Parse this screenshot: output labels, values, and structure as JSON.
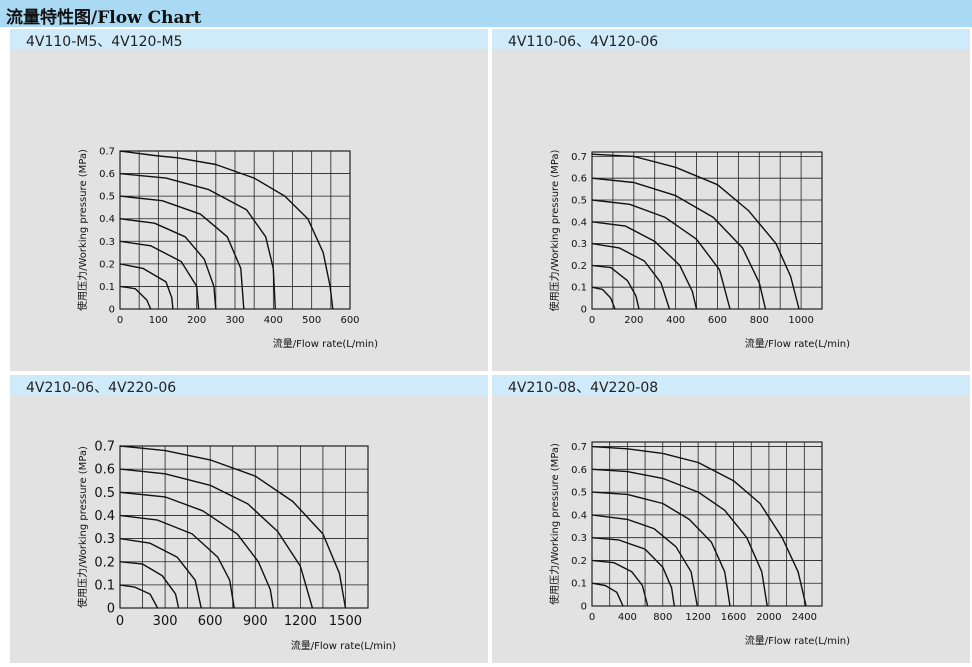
{
  "header": {
    "title": "流量特性图/Flow Chart"
  },
  "colors": {
    "header_bg": "#a9d9f3",
    "panel_head_bg": "#cfeaf8",
    "panel_bg": "#e2e2e2",
    "line": "#111111"
  },
  "chart_data": [
    {
      "type": "line",
      "title": "4V110-M5、4V120-M5",
      "xlabel": "流量/Flow rate(L/min)",
      "ylabel": "使用压力/Working pressure (MPa)",
      "xlim": [
        0,
        600
      ],
      "ylim": [
        0,
        0.7
      ],
      "x_ticks": [
        0,
        100,
        200,
        300,
        400,
        500,
        600
      ],
      "y_ticks": [
        0,
        0.1,
        0.2,
        0.3,
        0.4,
        0.5,
        0.6,
        0.7
      ],
      "x_tick_labels": [
        "0",
        "100",
        "200",
        "300",
        "400",
        "500",
        "600"
      ],
      "y_tick_labels": [
        "0",
        "0.1",
        "0.2",
        "0.3",
        "0.4",
        "0.5",
        "0.6",
        "0.7"
      ],
      "x_grid": [
        0,
        50,
        100,
        150,
        200,
        250,
        300,
        350,
        400,
        450,
        500,
        550,
        600
      ],
      "grid": true,
      "series": [
        {
          "values": [
            [
              0,
              0.7
            ],
            [
              90,
              0.68
            ],
            [
              150,
              0.67
            ],
            [
              250,
              0.64
            ],
            [
              350,
              0.58
            ],
            [
              430,
              0.5
            ],
            [
              490,
              0.4
            ],
            [
              530,
              0.25
            ],
            [
              548,
              0.1
            ],
            [
              555,
              0
            ]
          ]
        },
        {
          "values": [
            [
              0,
              0.6
            ],
            [
              120,
              0.58
            ],
            [
              230,
              0.53
            ],
            [
              330,
              0.44
            ],
            [
              380,
              0.32
            ],
            [
              400,
              0.18
            ],
            [
              405,
              0
            ]
          ]
        },
        {
          "values": [
            [
              0,
              0.5
            ],
            [
              110,
              0.48
            ],
            [
              210,
              0.42
            ],
            [
              280,
              0.32
            ],
            [
              315,
              0.18
            ],
            [
              323,
              0
            ]
          ]
        },
        {
          "values": [
            [
              0,
              0.4
            ],
            [
              90,
              0.38
            ],
            [
              170,
              0.32
            ],
            [
              220,
              0.22
            ],
            [
              245,
              0.1
            ],
            [
              250,
              0
            ]
          ]
        },
        {
          "values": [
            [
              0,
              0.3
            ],
            [
              80,
              0.28
            ],
            [
              160,
              0.21
            ],
            [
              200,
              0.1
            ],
            [
              205,
              0
            ]
          ]
        },
        {
          "values": [
            [
              0,
              0.2
            ],
            [
              60,
              0.18
            ],
            [
              120,
              0.12
            ],
            [
              135,
              0.05
            ],
            [
              138,
              0
            ]
          ]
        },
        {
          "values": [
            [
              0,
              0.1
            ],
            [
              40,
              0.09
            ],
            [
              70,
              0.04
            ],
            [
              80,
              0
            ]
          ]
        }
      ]
    },
    {
      "type": "line",
      "title": "4V110-06、4V120-06",
      "xlabel": "流量/Flow rate(L/min)",
      "ylabel": "使用压力/Working pressure (MPa)",
      "xlim": [
        0,
        1100
      ],
      "ylim": [
        0,
        0.72
      ],
      "x_ticks": [
        0,
        200,
        400,
        600,
        800,
        1000
      ],
      "y_ticks": [
        0,
        0.1,
        0.2,
        0.3,
        0.4,
        0.5,
        0.6,
        0.7
      ],
      "x_tick_labels": [
        "0",
        "200",
        "400",
        "600",
        "800",
        "1000"
      ],
      "y_tick_labels": [
        "0",
        "0.1",
        "0.2",
        "0.3",
        "0.4",
        "0.5",
        "0.6",
        "0.7"
      ],
      "x_grid": [
        0,
        100,
        200,
        300,
        400,
        500,
        600,
        700,
        800,
        900,
        1000,
        1100
      ],
      "grid": true,
      "series": [
        {
          "values": [
            [
              0,
              0.71
            ],
            [
              200,
              0.7
            ],
            [
              400,
              0.65
            ],
            [
              600,
              0.57
            ],
            [
              750,
              0.45
            ],
            [
              880,
              0.3
            ],
            [
              950,
              0.15
            ],
            [
              990,
              0
            ]
          ]
        },
        {
          "values": [
            [
              0,
              0.6
            ],
            [
              200,
              0.58
            ],
            [
              400,
              0.52
            ],
            [
              580,
              0.42
            ],
            [
              720,
              0.28
            ],
            [
              800,
              0.12
            ],
            [
              830,
              0
            ]
          ]
        },
        {
          "values": [
            [
              0,
              0.5
            ],
            [
              180,
              0.48
            ],
            [
              350,
              0.42
            ],
            [
              500,
              0.32
            ],
            [
              610,
              0.18
            ],
            [
              660,
              0
            ]
          ]
        },
        {
          "values": [
            [
              0,
              0.4
            ],
            [
              160,
              0.38
            ],
            [
              300,
              0.31
            ],
            [
              420,
              0.2
            ],
            [
              480,
              0.08
            ],
            [
              500,
              0
            ]
          ]
        },
        {
          "values": [
            [
              0,
              0.3
            ],
            [
              130,
              0.28
            ],
            [
              250,
              0.22
            ],
            [
              330,
              0.12
            ],
            [
              370,
              0
            ]
          ]
        },
        {
          "values": [
            [
              0,
              0.2
            ],
            [
              90,
              0.19
            ],
            [
              170,
              0.13
            ],
            [
              210,
              0.06
            ],
            [
              225,
              0
            ]
          ]
        },
        {
          "values": [
            [
              0,
              0.1
            ],
            [
              50,
              0.09
            ],
            [
              90,
              0.05
            ],
            [
              110,
              0
            ]
          ]
        }
      ]
    },
    {
      "type": "line",
      "title": "4V210-06、4V220-06",
      "xlabel": "流量/Flow rate(L/min)",
      "ylabel": "使用压力/Working pressure (MPa)",
      "xlim": [
        0,
        1650
      ],
      "ylim": [
        0,
        0.7
      ],
      "x_ticks": [
        0,
        300,
        600,
        900,
        1200,
        1500
      ],
      "y_ticks": [
        0,
        0.1,
        0.2,
        0.3,
        0.4,
        0.5,
        0.6,
        0.7
      ],
      "x_tick_labels": [
        "0",
        "300",
        "600",
        "900",
        "1200",
        "1500"
      ],
      "y_tick_labels": [
        "0",
        "0.1",
        "0.2",
        "0.3",
        "0.4",
        "0.5",
        "0.6",
        "0.7"
      ],
      "x_grid": [
        0,
        150,
        300,
        450,
        600,
        750,
        900,
        1050,
        1200,
        1350,
        1500,
        1650
      ],
      "grid": true,
      "series": [
        {
          "values": [
            [
              0,
              0.7
            ],
            [
              300,
              0.68
            ],
            [
              600,
              0.64
            ],
            [
              900,
              0.57
            ],
            [
              1150,
              0.46
            ],
            [
              1350,
              0.32
            ],
            [
              1460,
              0.15
            ],
            [
              1500,
              0
            ]
          ]
        },
        {
          "values": [
            [
              0,
              0.6
            ],
            [
              300,
              0.58
            ],
            [
              600,
              0.53
            ],
            [
              850,
              0.45
            ],
            [
              1050,
              0.33
            ],
            [
              1200,
              0.18
            ],
            [
              1280,
              0
            ]
          ]
        },
        {
          "values": [
            [
              0,
              0.5
            ],
            [
              300,
              0.48
            ],
            [
              550,
              0.42
            ],
            [
              780,
              0.32
            ],
            [
              920,
              0.2
            ],
            [
              1000,
              0.08
            ],
            [
              1020,
              0
            ]
          ]
        },
        {
          "values": [
            [
              0,
              0.4
            ],
            [
              250,
              0.38
            ],
            [
              480,
              0.32
            ],
            [
              650,
              0.22
            ],
            [
              730,
              0.12
            ],
            [
              760,
              0
            ]
          ]
        },
        {
          "values": [
            [
              0,
              0.3
            ],
            [
              200,
              0.28
            ],
            [
              380,
              0.22
            ],
            [
              500,
              0.12
            ],
            [
              540,
              0
            ]
          ]
        },
        {
          "values": [
            [
              0,
              0.2
            ],
            [
              150,
              0.19
            ],
            [
              280,
              0.14
            ],
            [
              370,
              0.06
            ],
            [
              390,
              0
            ]
          ]
        },
        {
          "values": [
            [
              0,
              0.1
            ],
            [
              100,
              0.09
            ],
            [
              200,
              0.06
            ],
            [
              250,
              0
            ]
          ]
        }
      ]
    },
    {
      "type": "line",
      "title": "4V210-08、4V220-08",
      "xlabel": "流量/Flow rate(L/min)",
      "ylabel": "使用压力/Working pressure (MPa)",
      "xlim": [
        0,
        2600
      ],
      "ylim": [
        0,
        0.72
      ],
      "x_ticks": [
        0,
        400,
        800,
        1200,
        1600,
        2000,
        2400
      ],
      "y_ticks": [
        0,
        0.1,
        0.2,
        0.3,
        0.4,
        0.5,
        0.6,
        0.7
      ],
      "x_tick_labels": [
        "0",
        "400",
        "800",
        "1200",
        "1600",
        "2000",
        "2400"
      ],
      "y_tick_labels": [
        "0",
        "0.1",
        "0.2",
        "0.3",
        "0.4",
        "0.5",
        "0.6",
        "0.7"
      ],
      "x_grid": [
        0,
        200,
        400,
        600,
        800,
        1000,
        1200,
        1400,
        1600,
        1800,
        2000,
        2200,
        2400,
        2600
      ],
      "grid": true,
      "series": [
        {
          "values": [
            [
              0,
              0.7
            ],
            [
              400,
              0.69
            ],
            [
              800,
              0.67
            ],
            [
              1200,
              0.63
            ],
            [
              1600,
              0.55
            ],
            [
              1900,
              0.45
            ],
            [
              2150,
              0.3
            ],
            [
              2330,
              0.15
            ],
            [
              2420,
              0
            ]
          ]
        },
        {
          "values": [
            [
              0,
              0.6
            ],
            [
              400,
              0.59
            ],
            [
              800,
              0.56
            ],
            [
              1200,
              0.5
            ],
            [
              1500,
              0.42
            ],
            [
              1750,
              0.3
            ],
            [
              1920,
              0.15
            ],
            [
              1980,
              0
            ]
          ]
        },
        {
          "values": [
            [
              0,
              0.5
            ],
            [
              400,
              0.49
            ],
            [
              800,
              0.45
            ],
            [
              1100,
              0.38
            ],
            [
              1350,
              0.28
            ],
            [
              1500,
              0.15
            ],
            [
              1560,
              0
            ]
          ]
        },
        {
          "values": [
            [
              0,
              0.4
            ],
            [
              400,
              0.38
            ],
            [
              700,
              0.34
            ],
            [
              950,
              0.26
            ],
            [
              1120,
              0.15
            ],
            [
              1190,
              0
            ]
          ]
        },
        {
          "values": [
            [
              0,
              0.3
            ],
            [
              300,
              0.29
            ],
            [
              600,
              0.25
            ],
            [
              800,
              0.17
            ],
            [
              900,
              0.08
            ],
            [
              930,
              0
            ]
          ]
        },
        {
          "values": [
            [
              0,
              0.2
            ],
            [
              250,
              0.19
            ],
            [
              450,
              0.15
            ],
            [
              570,
              0.09
            ],
            [
              630,
              0
            ]
          ]
        },
        {
          "values": [
            [
              0,
              0.1
            ],
            [
              150,
              0.09
            ],
            [
              280,
              0.06
            ],
            [
              350,
              0
            ]
          ]
        }
      ]
    }
  ]
}
